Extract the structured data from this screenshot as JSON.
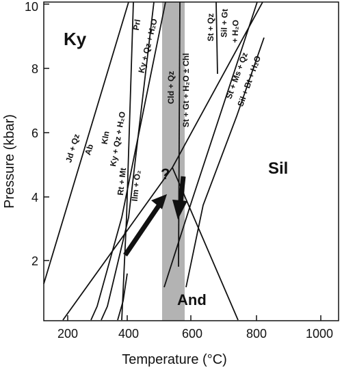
{
  "axes": {
    "x_label": "Temperature (°C)",
    "y_label": "Pressure (kbar)",
    "x_ticks": [
      "200",
      "400",
      "600",
      "800",
      "1000"
    ],
    "y_ticks": [
      "2",
      "4",
      "6",
      "8",
      "10"
    ]
  },
  "fields": {
    "ky": "Ky",
    "sil": "Sil",
    "and": "And"
  },
  "reactions": {
    "jd_qz": "Jd + Qz",
    "ab": "Ab",
    "kln": "Kln",
    "prl": "Prl",
    "ky_qz_h2o_top": "Ky + Qz + H₂O",
    "ky_qz_h2o_low": "Ky + Qz + H₂O",
    "rt_mt": "Rt + Mt",
    "ilm_o2": "Ilm + O₂",
    "cld_qz": "Cld + Qz",
    "st_gt_h2o_chl": "St + Gt + H₂O ± Chl",
    "st_qz": "St + Qz",
    "sil_gt": "Sil + Gt",
    "h2o": "+ H₂O",
    "st_ms_qz": "St + Ms + Qz",
    "sil_bt_h2o": "Sil + Bt + H₂O"
  },
  "annotations": {
    "question_mark": "?"
  },
  "band_color": "#b3b3b3"
}
